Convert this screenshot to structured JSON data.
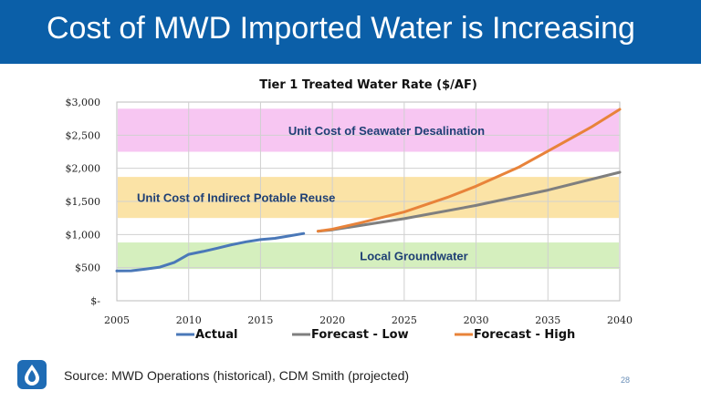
{
  "slide": {
    "title": "Cost of MWD Imported Water is Increasing",
    "source": "Source: MWD Operations (historical), CDM Smith (projected)",
    "page_number": "28",
    "logo_icon": "water-drop-icon",
    "header_color": "#0b5fa8"
  },
  "chart_data": {
    "type": "line",
    "title": "Tier 1 Treated Water Rate ($/AF)",
    "xlabel": "",
    "ylabel": "",
    "xlim": [
      2005,
      2040
    ],
    "ylim": [
      0,
      3000
    ],
    "x_ticks": [
      2005,
      2010,
      2015,
      2020,
      2025,
      2030,
      2035,
      2040
    ],
    "y_ticks": [
      0,
      500,
      1000,
      1500,
      2000,
      2500,
      3000
    ],
    "y_tick_labels": [
      "$-",
      "$500",
      "$1,000",
      "$1,500",
      "$2,000",
      "$2,500",
      "$3,000"
    ],
    "grid": true,
    "legend_position": "bottom",
    "bands": [
      {
        "label": "Unit Cost of Seawater Desalination",
        "y0": 2250,
        "y1": 2900,
        "color": "#f7c6f2"
      },
      {
        "label": "Unit Cost of Indirect Potable Reuse",
        "y0": 1250,
        "y1": 1870,
        "color": "#fbe3a6"
      },
      {
        "label": "Local Groundwater",
        "y0": 480,
        "y1": 880,
        "color": "#d5efbe"
      }
    ],
    "series": [
      {
        "name": "Actual",
        "color": "#4a78b8",
        "x": [
          2005,
          2006,
          2007,
          2008,
          2009,
          2010,
          2011,
          2012,
          2013,
          2014,
          2015,
          2016,
          2017,
          2018
        ],
        "y": [
          450,
          453,
          479,
          508,
          579,
          701,
          744,
          794,
          847,
          890,
          923,
          942,
          979,
          1015
        ]
      },
      {
        "name": "Forecast - Low",
        "color": "#7f7f7f",
        "x": [
          2019,
          2020,
          2025,
          2030,
          2035,
          2040
        ],
        "y": [
          1050,
          1070,
          1240,
          1440,
          1670,
          1940
        ]
      },
      {
        "name": "Forecast - High",
        "color": "#e8833a",
        "x": [
          2019,
          2020,
          2022,
          2025,
          2028,
          2030,
          2033,
          2035,
          2038,
          2040
        ],
        "y": [
          1050,
          1080,
          1180,
          1340,
          1560,
          1730,
          2020,
          2260,
          2620,
          2890
        ]
      }
    ]
  }
}
